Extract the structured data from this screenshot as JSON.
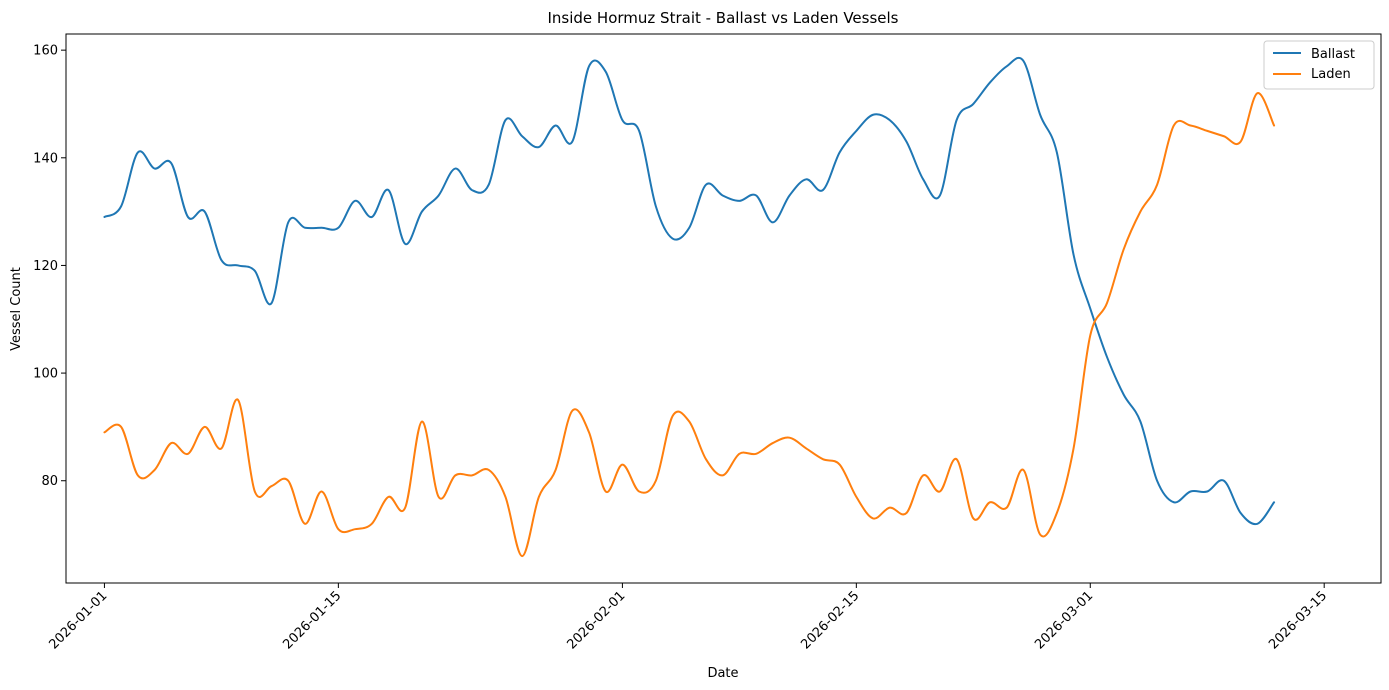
{
  "chart_data": {
    "type": "line",
    "title": "Inside Hormuz Strait - Ballast vs Laden Vessels",
    "xlabel": "Date",
    "ylabel": "Vessel Count",
    "x_start": "2026-01-01",
    "x_step_days": 1,
    "xlim_days": [
      -2.3,
      76.4
    ],
    "ylim": [
      61,
      163
    ],
    "x_ticks": [
      {
        "day": 0,
        "label": "2026-01-01"
      },
      {
        "day": 14,
        "label": "2026-01-15"
      },
      {
        "day": 31,
        "label": "2026-02-01"
      },
      {
        "day": 45,
        "label": "2026-02-15"
      },
      {
        "day": 59,
        "label": "2026-03-01"
      },
      {
        "day": 73,
        "label": "2026-03-15"
      }
    ],
    "y_ticks": [
      80,
      100,
      120,
      140,
      160
    ],
    "grid": false,
    "legend_position": "top-right",
    "series": [
      {
        "name": "Ballast",
        "color": "#1f77b4",
        "values": [
          129,
          131,
          141,
          138,
          139,
          129,
          130,
          121,
          120,
          119,
          113,
          128,
          127,
          127,
          127,
          132,
          129,
          134,
          124,
          130,
          133,
          138,
          134,
          135,
          147,
          144,
          142,
          146,
          143,
          157,
          156,
          147,
          145,
          131,
          125,
          127,
          135,
          133,
          132,
          133,
          128,
          133,
          136,
          134,
          141,
          145,
          148,
          147,
          143,
          136,
          133,
          147,
          150,
          154,
          157,
          158,
          148,
          141,
          122,
          112,
          103,
          96,
          91,
          80,
          76,
          78,
          78,
          80,
          74,
          72,
          76
        ]
      },
      {
        "name": "Laden",
        "color": "#ff7f0e",
        "values": [
          89,
          90,
          81,
          82,
          87,
          85,
          90,
          86,
          95,
          78,
          79,
          80,
          72,
          78,
          71,
          71,
          72,
          77,
          75,
          91,
          77,
          81,
          81,
          82,
          77,
          66,
          77,
          82,
          93,
          89,
          78,
          83,
          78,
          80,
          92,
          91,
          84,
          81,
          85,
          85,
          87,
          88,
          86,
          84,
          83,
          77,
          73,
          75,
          74,
          81,
          78,
          84,
          73,
          76,
          75,
          82,
          70,
          74,
          86,
          107,
          113,
          123,
          130,
          135,
          146,
          146,
          145,
          144,
          143,
          152,
          146
        ]
      }
    ]
  }
}
